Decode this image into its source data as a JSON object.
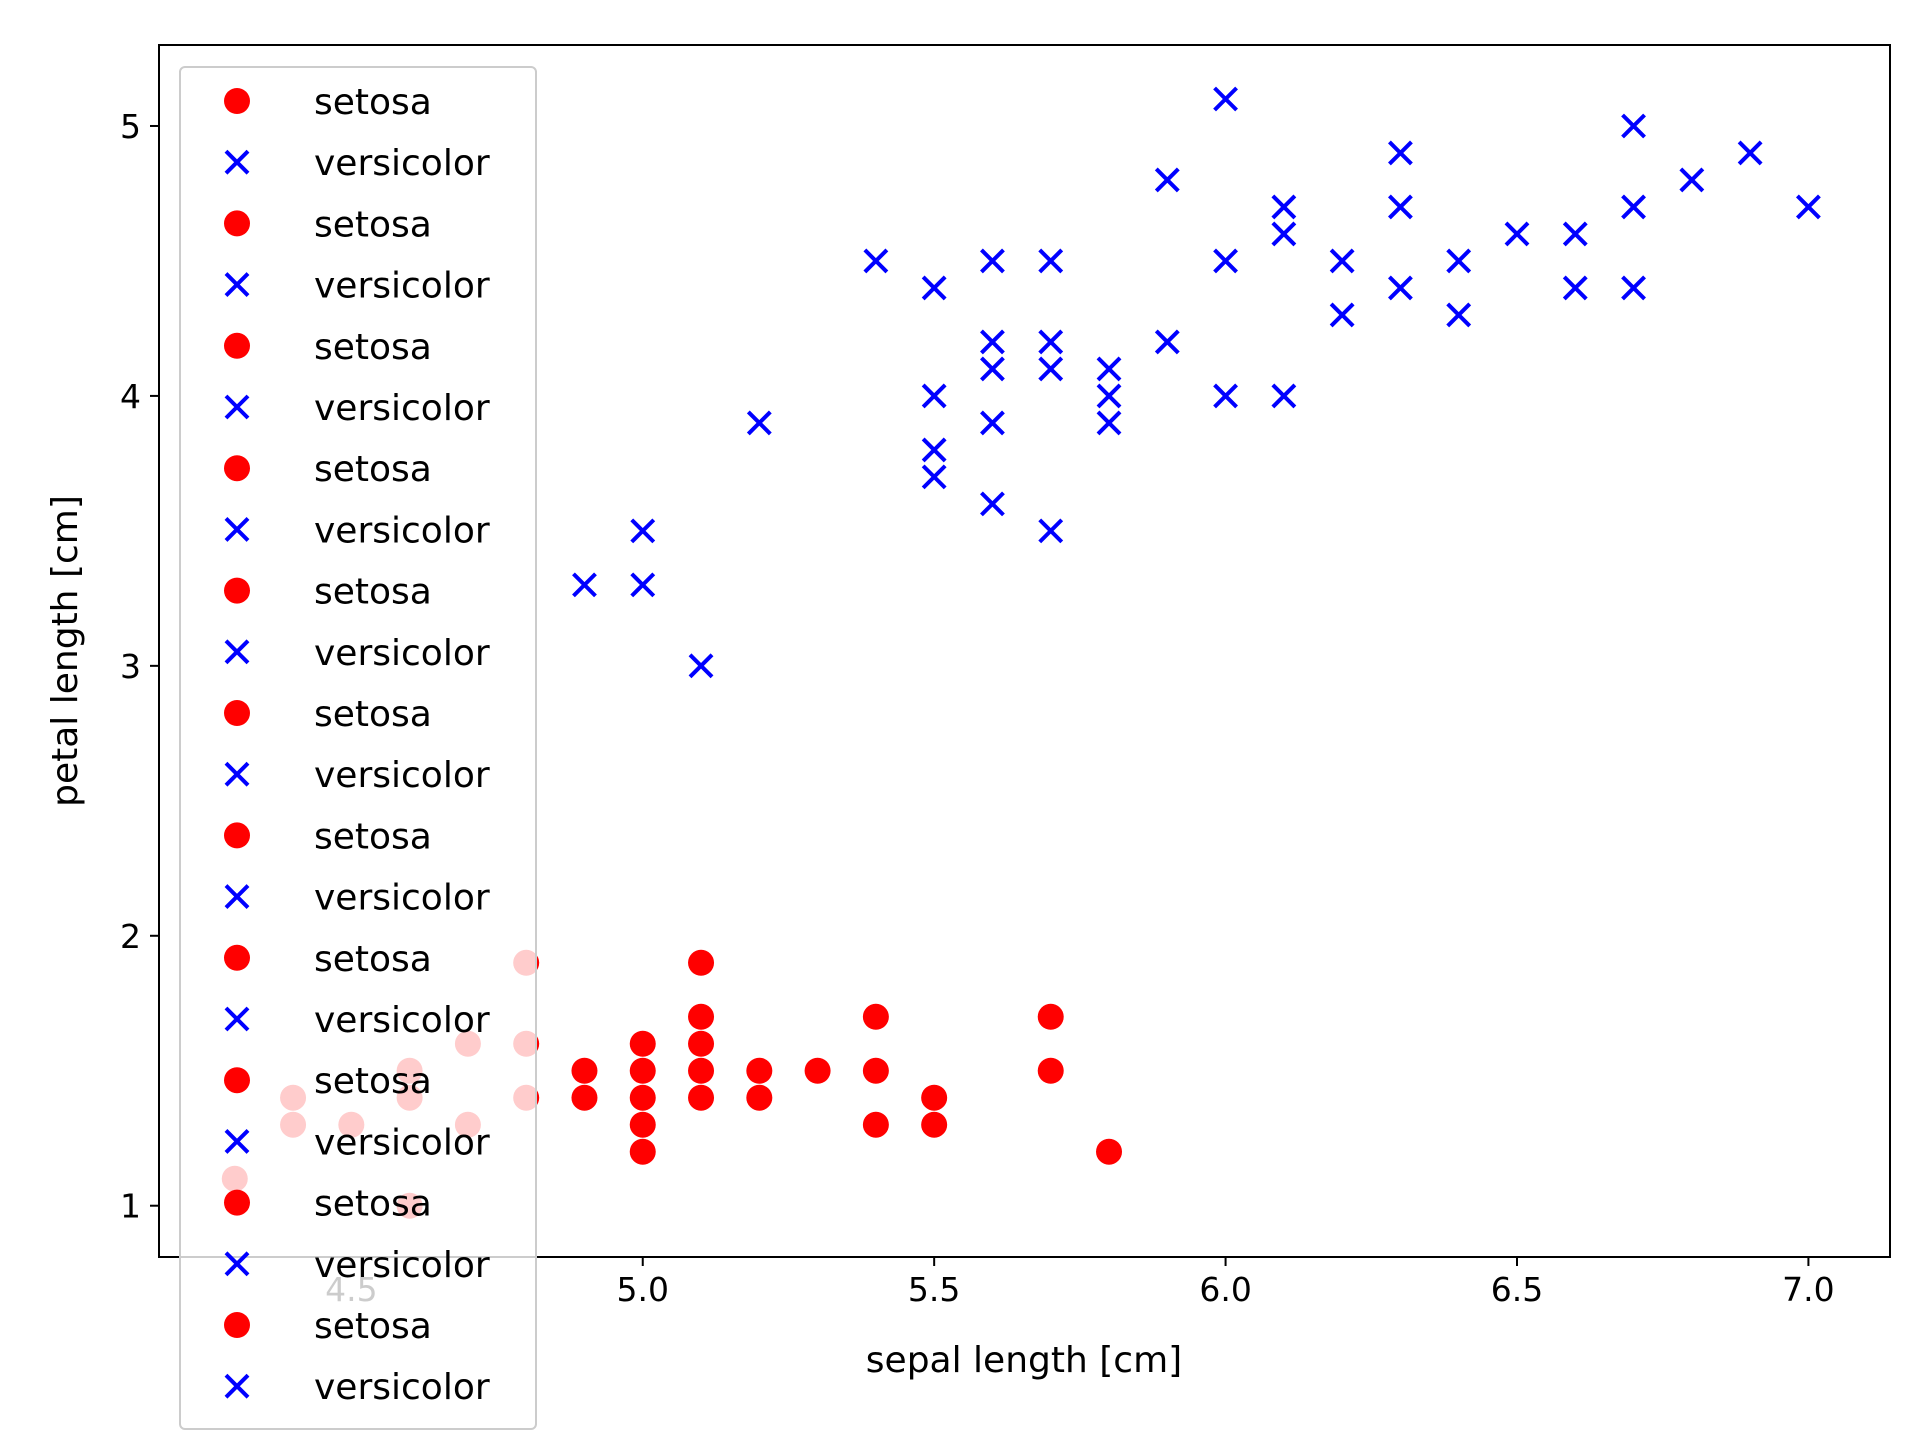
{
  "chart_data": {
    "type": "scatter",
    "title": "",
    "xlabel": "sepal length [cm]",
    "ylabel": "petal length [cm]",
    "xlim": [
      4.17,
      7.14
    ],
    "ylim": [
      0.81,
      5.3
    ],
    "xticks": [
      4.5,
      5.0,
      5.5,
      6.0,
      6.5,
      7.0
    ],
    "xtick_labels": [
      "4.5",
      "5.0",
      "5.5",
      "6.0",
      "6.5",
      "7.0"
    ],
    "yticks": [
      1,
      2,
      3,
      4,
      5
    ],
    "ytick_labels": [
      "1",
      "2",
      "3",
      "4",
      "5"
    ],
    "grid": false,
    "legend_position": "upper-left",
    "legend_entries": [
      {
        "label": "setosa",
        "marker": "circle",
        "color": "#ff0000"
      },
      {
        "label": "versicolor",
        "marker": "x",
        "color": "#0000ff"
      },
      {
        "label": "setosa",
        "marker": "circle",
        "color": "#ff0000"
      },
      {
        "label": "versicolor",
        "marker": "x",
        "color": "#0000ff"
      },
      {
        "label": "setosa",
        "marker": "circle",
        "color": "#ff0000"
      },
      {
        "label": "versicolor",
        "marker": "x",
        "color": "#0000ff"
      },
      {
        "label": "setosa",
        "marker": "circle",
        "color": "#ff0000"
      },
      {
        "label": "versicolor",
        "marker": "x",
        "color": "#0000ff"
      },
      {
        "label": "setosa",
        "marker": "circle",
        "color": "#ff0000"
      },
      {
        "label": "versicolor",
        "marker": "x",
        "color": "#0000ff"
      },
      {
        "label": "setosa",
        "marker": "circle",
        "color": "#ff0000"
      },
      {
        "label": "versicolor",
        "marker": "x",
        "color": "#0000ff"
      },
      {
        "label": "setosa",
        "marker": "circle",
        "color": "#ff0000"
      },
      {
        "label": "versicolor",
        "marker": "x",
        "color": "#0000ff"
      },
      {
        "label": "setosa",
        "marker": "circle",
        "color": "#ff0000"
      },
      {
        "label": "versicolor",
        "marker": "x",
        "color": "#0000ff"
      },
      {
        "label": "setosa",
        "marker": "circle",
        "color": "#ff0000"
      },
      {
        "label": "versicolor",
        "marker": "x",
        "color": "#0000ff"
      },
      {
        "label": "setosa",
        "marker": "circle",
        "color": "#ff0000"
      },
      {
        "label": "versicolor",
        "marker": "x",
        "color": "#0000ff"
      },
      {
        "label": "setosa",
        "marker": "circle",
        "color": "#ff0000"
      },
      {
        "label": "versicolor",
        "marker": "x",
        "color": "#0000ff"
      }
    ],
    "series": [
      {
        "name": "setosa",
        "marker": "circle",
        "color": "#ff0000",
        "points": [
          [
            4.3,
            1.1
          ],
          [
            4.4,
            1.3
          ],
          [
            4.4,
            1.4
          ],
          [
            4.5,
            1.3
          ],
          [
            4.6,
            1.0
          ],
          [
            4.6,
            1.4
          ],
          [
            4.6,
            1.5
          ],
          [
            4.7,
            1.3
          ],
          [
            4.7,
            1.6
          ],
          [
            4.8,
            1.4
          ],
          [
            4.8,
            1.6
          ],
          [
            4.8,
            1.9
          ],
          [
            4.9,
            1.4
          ],
          [
            4.9,
            1.5
          ],
          [
            5.0,
            1.2
          ],
          [
            5.0,
            1.3
          ],
          [
            5.0,
            1.4
          ],
          [
            5.0,
            1.5
          ],
          [
            5.0,
            1.6
          ],
          [
            5.1,
            1.4
          ],
          [
            5.1,
            1.5
          ],
          [
            5.1,
            1.6
          ],
          [
            5.1,
            1.7
          ],
          [
            5.1,
            1.9
          ],
          [
            5.2,
            1.4
          ],
          [
            5.2,
            1.5
          ],
          [
            5.3,
            1.5
          ],
          [
            5.4,
            1.3
          ],
          [
            5.4,
            1.5
          ],
          [
            5.4,
            1.7
          ],
          [
            5.5,
            1.3
          ],
          [
            5.5,
            1.4
          ],
          [
            5.7,
            1.5
          ],
          [
            5.7,
            1.7
          ],
          [
            5.8,
            1.2
          ]
        ]
      },
      {
        "name": "versicolor",
        "marker": "x",
        "color": "#0000ff",
        "points": [
          [
            4.9,
            3.3
          ],
          [
            5.0,
            3.3
          ],
          [
            5.0,
            3.5
          ],
          [
            5.1,
            3.0
          ],
          [
            5.2,
            3.9
          ],
          [
            5.4,
            4.5
          ],
          [
            5.5,
            3.7
          ],
          [
            5.5,
            3.8
          ],
          [
            5.5,
            4.0
          ],
          [
            5.5,
            4.4
          ],
          [
            5.6,
            3.6
          ],
          [
            5.6,
            3.9
          ],
          [
            5.6,
            4.1
          ],
          [
            5.6,
            4.2
          ],
          [
            5.6,
            4.5
          ],
          [
            5.7,
            3.5
          ],
          [
            5.7,
            4.1
          ],
          [
            5.7,
            4.2
          ],
          [
            5.7,
            4.5
          ],
          [
            5.8,
            3.9
          ],
          [
            5.8,
            4.0
          ],
          [
            5.8,
            4.1
          ],
          [
            5.9,
            4.2
          ],
          [
            5.9,
            4.8
          ],
          [
            6.0,
            4.0
          ],
          [
            6.0,
            4.5
          ],
          [
            6.0,
            5.1
          ],
          [
            6.1,
            4.0
          ],
          [
            6.1,
            4.6
          ],
          [
            6.1,
            4.7
          ],
          [
            6.2,
            4.3
          ],
          [
            6.2,
            4.5
          ],
          [
            6.3,
            4.4
          ],
          [
            6.3,
            4.7
          ],
          [
            6.3,
            4.9
          ],
          [
            6.4,
            4.3
          ],
          [
            6.4,
            4.5
          ],
          [
            6.5,
            4.6
          ],
          [
            6.6,
            4.4
          ],
          [
            6.6,
            4.6
          ],
          [
            6.7,
            4.4
          ],
          [
            6.7,
            4.7
          ],
          [
            6.7,
            5.0
          ],
          [
            6.8,
            4.8
          ],
          [
            6.9,
            4.9
          ],
          [
            7.0,
            4.7
          ]
        ]
      }
    ]
  }
}
